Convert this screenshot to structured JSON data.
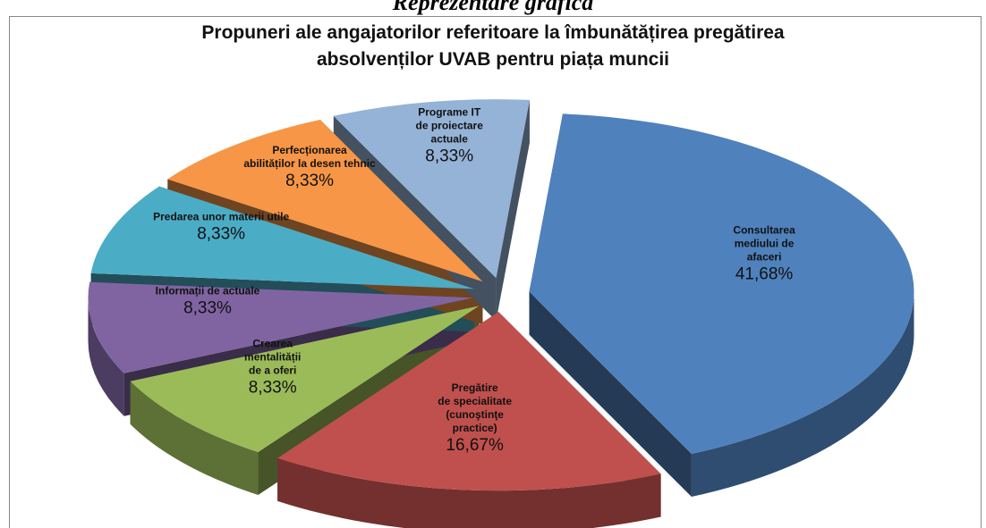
{
  "header": "Reprezentare grafică",
  "chart_data": {
    "type": "pie3d",
    "title": "Propuneri ale angajatorilor referitoare la îmbunătățirea pregătirea\nabsolvenților UVAB pentru piața muncii",
    "categories": [
      "Consultarea\nmediului de\nafaceri",
      "Pregătire\nde specialitate\n(cunoştinţe\npractice)",
      "Crearea\nmentalității\nde a oferi",
      "Informații de  actuale",
      "Predarea unor materii utile",
      "Perfecționarea\nabilităților la desen tehnic",
      "Programe  IT\nde proiectare\nactuale"
    ],
    "values": [
      41.68,
      16.67,
      8.33,
      8.33,
      8.33,
      8.33,
      8.33
    ],
    "value_labels": [
      "41,68%",
      "16,67%",
      "8,33%",
      "8,33%",
      "8,33%",
      "8,33%",
      "8,33%"
    ],
    "colors": [
      "#4f81bd",
      "#c0504d",
      "#9bbb59",
      "#8064a2",
      "#4bacc6",
      "#f79646",
      "#95b3d7"
    ]
  }
}
